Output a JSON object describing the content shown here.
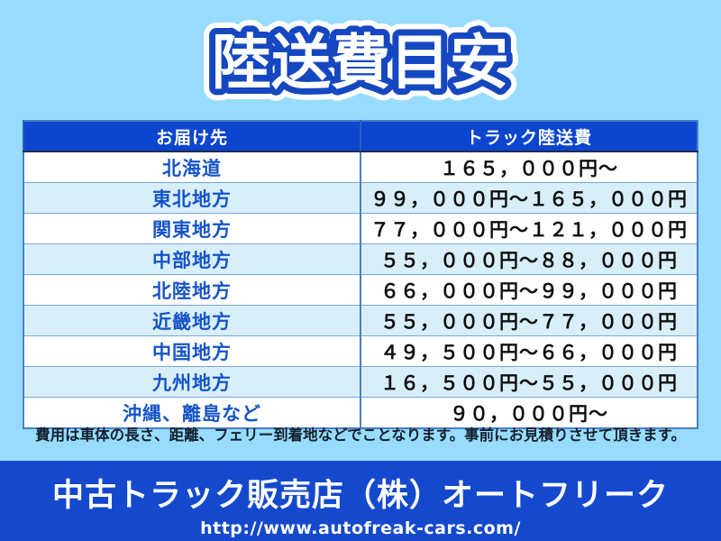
{
  "page": {
    "title": "陸送費目安",
    "background_color": "#97dcfd"
  },
  "table": {
    "columns": [
      "お届け先",
      "トラック陸送費"
    ],
    "rows": [
      {
        "destination": "北海道",
        "fee": "１６５，０００円～"
      },
      {
        "destination": "東北地方",
        "fee": "９９，０００円～１６５，０００円"
      },
      {
        "destination": "関東地方",
        "fee": "７７，０００円～１２１，０００円"
      },
      {
        "destination": "中部地方",
        "fee": "５５，０００円～８８，０００円"
      },
      {
        "destination": "北陸地方",
        "fee": "６６，０００円～９９，０００円"
      },
      {
        "destination": "近畿地方",
        "fee": "５５，０００円～７７，０００円"
      },
      {
        "destination": "中国地方",
        "fee": "４９，５００円～６６，０００円"
      },
      {
        "destination": "九州地方",
        "fee": "１６，５００円～５５，０００円"
      },
      {
        "destination": "沖縄、離島など",
        "fee": "９０，０００円～"
      }
    ]
  },
  "note": "費用は車体の長さ、距離、フェリー到着地などでことなります。事前にお見積りさせて頂きます。",
  "footer": {
    "company": "中古トラック販売店（株）オートフリーク",
    "url": "http://www.autofreak-cars.com/"
  },
  "colors": {
    "background": "#97dcfd",
    "header_bg": "#0c45ce",
    "stripe_row_bg": "#d8effa",
    "white_row_bg": "#ffffff",
    "destination_text": "#1553c8",
    "fee_text": "#0d0d0d",
    "table_border": "#4a7ec8",
    "title_outline": "#1547c0",
    "note_text": "#14202e",
    "footer_bg": "#1449ce",
    "footer_text": "#ffffff"
  }
}
